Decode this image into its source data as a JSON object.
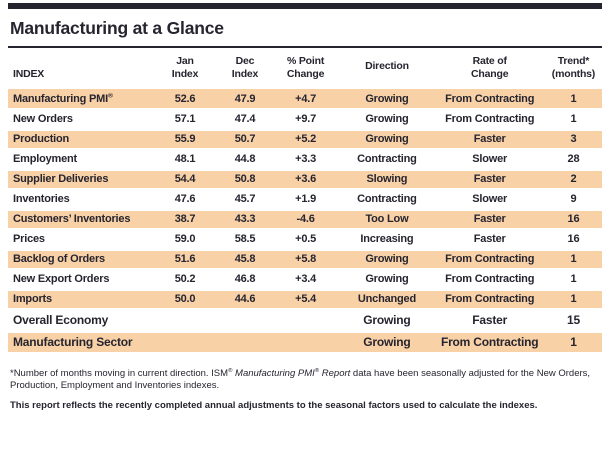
{
  "page": {
    "title": "Manufacturing at a Glance"
  },
  "colors": {
    "ink": "#26242f",
    "shade": "#f8d1a7"
  },
  "table": {
    "columns": [
      "INDEX",
      "Jan\nIndex",
      "Dec\nIndex",
      "% Point\nChange",
      "Direction",
      "Rate of\nChange",
      "Trend*\n(months)"
    ],
    "rows": [
      {
        "index": "Manufacturing PMI®",
        "jan": "52.6",
        "dec": "47.9",
        "change": "+4.7",
        "direction": "Growing",
        "rate": "From Contracting",
        "trend": "1"
      },
      {
        "index": "New Orders",
        "jan": "57.1",
        "dec": "47.4",
        "change": "+9.7",
        "direction": "Growing",
        "rate": "From Contracting",
        "trend": "1"
      },
      {
        "index": "Production",
        "jan": "55.9",
        "dec": "50.7",
        "change": "+5.2",
        "direction": "Growing",
        "rate": "Faster",
        "trend": "3"
      },
      {
        "index": "Employment",
        "jan": "48.1",
        "dec": "44.8",
        "change": "+3.3",
        "direction": "Contracting",
        "rate": "Slower",
        "trend": "28"
      },
      {
        "index": "Supplier Deliveries",
        "jan": "54.4",
        "dec": "50.8",
        "change": "+3.6",
        "direction": "Slowing",
        "rate": "Faster",
        "trend": "2"
      },
      {
        "index": "Inventories",
        "jan": "47.6",
        "dec": "45.7",
        "change": "+1.9",
        "direction": "Contracting",
        "rate": "Slower",
        "trend": "9"
      },
      {
        "index": "Customers’ Inventories",
        "jan": "38.7",
        "dec": "43.3",
        "change": "-4.6",
        "direction": "Too Low",
        "rate": "Faster",
        "trend": "16"
      },
      {
        "index": "Prices",
        "jan": "59.0",
        "dec": "58.5",
        "change": "+0.5",
        "direction": "Increasing",
        "rate": "Faster",
        "trend": "16"
      },
      {
        "index": "Backlog of Orders",
        "jan": "51.6",
        "dec": "45.8",
        "change": "+5.8",
        "direction": "Growing",
        "rate": "From Contracting",
        "trend": "1"
      },
      {
        "index": "New Export Orders",
        "jan": "50.2",
        "dec": "46.8",
        "change": "+3.4",
        "direction": "Growing",
        "rate": "From Contracting",
        "trend": "1"
      },
      {
        "index": "Imports",
        "jan": "50.0",
        "dec": "44.6",
        "change": "+5.4",
        "direction": "Unchanged",
        "rate": "From Contracting",
        "trend": "1"
      },
      {
        "index": "Overall Economy",
        "jan": "",
        "dec": "",
        "change": "",
        "direction": "Growing",
        "rate": "Faster",
        "trend": "15",
        "summary": true
      },
      {
        "index": "Manufacturing Sector",
        "jan": "",
        "dec": "",
        "change": "",
        "direction": "Growing",
        "rate": "From Contracting",
        "trend": "1",
        "summary": true
      }
    ]
  },
  "footnotes": {
    "primary_segments": [
      {
        "text": "*Number of months moving in current direction. ISM® ",
        "italic": false
      },
      {
        "text": "Manufacturing PMI® Report",
        "italic": true
      },
      {
        "text": " data have been seasonally adjusted for the New Orders, Production, Employment and Inventories indexes.",
        "italic": false
      }
    ],
    "secondary": "This report reflects the recently completed annual adjustments to the seasonal factors used to calculate the indexes."
  }
}
